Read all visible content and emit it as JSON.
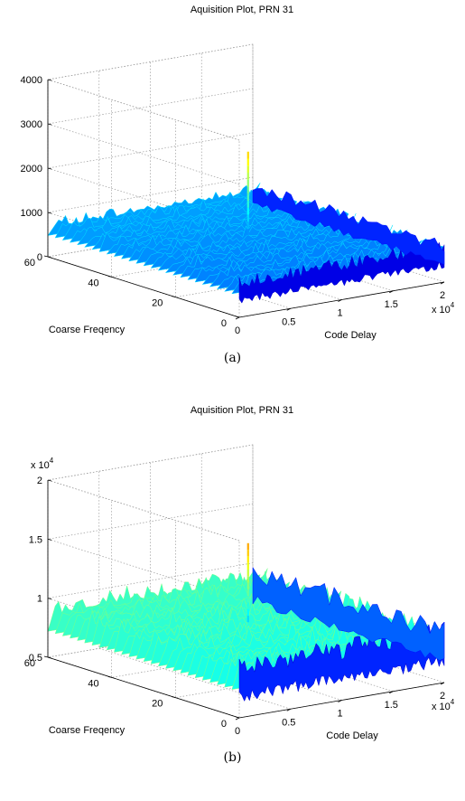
{
  "chart_data": [
    {
      "type": "surface",
      "title": "Aquisition Plot, PRN 31",
      "xlabel": "Code Delay",
      "ylabel": "Coarse Freqency",
      "x_exponent": "x 10",
      "x_exponent_power": "4",
      "xticks": [
        "0",
        "0.5",
        "1",
        "1.5",
        "2"
      ],
      "yticks": [
        "0",
        "20",
        "40",
        "60"
      ],
      "zticks": [
        "0",
        "1000",
        "2000",
        "3000",
        "4000"
      ],
      "xlim": [
        0,
        2
      ],
      "ylim": [
        0,
        60
      ],
      "zlim": [
        0,
        4000
      ],
      "noise_floor_range": [
        500,
        1000
      ],
      "peak": {
        "code_delay": 1.02,
        "coarse_frequency": 30,
        "value": 2650
      },
      "grid": true,
      "colormap": "jet",
      "caption": "(a)"
    },
    {
      "type": "surface",
      "title": "Aquisition Plot, PRN 31",
      "xlabel": "Code Delay",
      "ylabel": "Coarse Freqency",
      "x_exponent": "x 10",
      "x_exponent_power": "4",
      "z_exponent": "x 10",
      "z_exponent_power": "4",
      "xticks": [
        "0",
        "0.5",
        "1",
        "1.5",
        "2"
      ],
      "yticks": [
        "0",
        "20",
        "40",
        "60"
      ],
      "zticks": [
        "0.5",
        "1",
        "1.5",
        "2"
      ],
      "xlim": [
        0,
        2
      ],
      "ylim": [
        0,
        60
      ],
      "zlim": [
        0.5,
        2
      ],
      "noise_floor_range": [
        0.75,
        1.05
      ],
      "peak": {
        "code_delay": 1.02,
        "coarse_frequency": 30,
        "value": 1.57
      },
      "grid": true,
      "colormap": "jet",
      "caption": "(b)"
    }
  ]
}
